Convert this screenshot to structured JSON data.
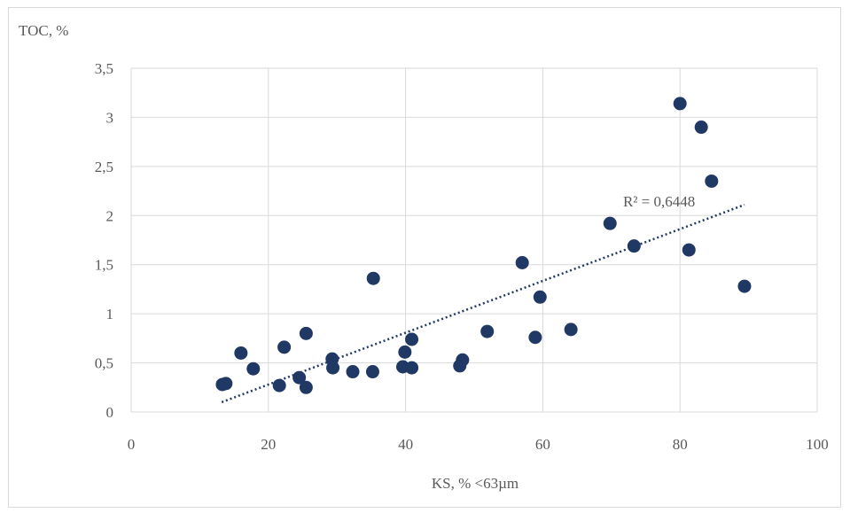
{
  "chart_data": {
    "type": "scatter",
    "title": "",
    "ylabel": "TOC, %",
    "xlabel": "KS, % <63µm",
    "xlim": [
      0,
      100
    ],
    "ylim": [
      0,
      3.5
    ],
    "x_ticks": [
      0,
      20,
      40,
      60,
      80,
      100
    ],
    "y_ticks": [
      0,
      0.5,
      1,
      1.5,
      2,
      2.5,
      3,
      3.5
    ],
    "x_tick_labels": [
      "0",
      "20",
      "40",
      "60",
      "80",
      "100"
    ],
    "y_tick_labels": [
      "0",
      "0,5",
      "1",
      "1,5",
      "2",
      "2,5",
      "3",
      "3,5"
    ],
    "grid": true,
    "marker_color": "#203864",
    "trendline": {
      "type": "linear",
      "style": "dotted",
      "color": "#203864",
      "x_range": [
        13.2,
        89.4
      ],
      "y_range": [
        0.1,
        2.11
      ],
      "label": "R² = 0,6448"
    },
    "series": [
      {
        "points": [
          [
            13.3,
            0.28
          ],
          [
            13.8,
            0.29
          ],
          [
            16.0,
            0.6
          ],
          [
            17.8,
            0.44
          ],
          [
            21.6,
            0.27
          ],
          [
            22.3,
            0.66
          ],
          [
            24.5,
            0.35
          ],
          [
            25.5,
            0.25
          ],
          [
            25.5,
            0.8
          ],
          [
            29.3,
            0.54
          ],
          [
            29.4,
            0.45
          ],
          [
            32.3,
            0.41
          ],
          [
            35.2,
            0.41
          ],
          [
            35.3,
            1.36
          ],
          [
            39.6,
            0.46
          ],
          [
            39.9,
            0.61
          ],
          [
            40.9,
            0.45
          ],
          [
            40.9,
            0.74
          ],
          [
            47.9,
            0.47
          ],
          [
            48.3,
            0.53
          ],
          [
            51.9,
            0.82
          ],
          [
            57.0,
            1.52
          ],
          [
            58.9,
            0.76
          ],
          [
            59.6,
            1.17
          ],
          [
            64.1,
            0.84
          ],
          [
            69.8,
            1.92
          ],
          [
            73.3,
            1.69
          ],
          [
            80.0,
            3.14
          ],
          [
            81.3,
            1.65
          ],
          [
            83.1,
            2.9
          ],
          [
            84.6,
            2.35
          ],
          [
            89.4,
            1.28
          ]
        ]
      }
    ]
  }
}
